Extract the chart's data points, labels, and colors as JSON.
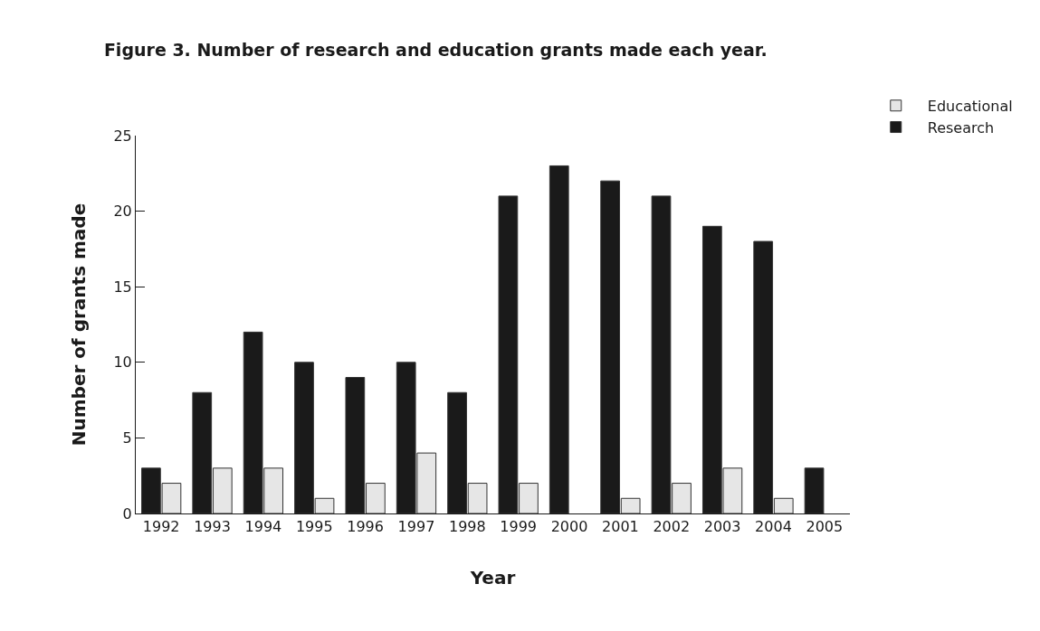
{
  "chart_data": {
    "type": "bar",
    "title": "Figure 3. Number of research and education grants made each year.",
    "xlabel": "Year",
    "ylabel": "Number of grants made",
    "categories": [
      "1992",
      "1993",
      "1994",
      "1995",
      "1996",
      "1997",
      "1998",
      "1999",
      "2000",
      "2001",
      "2002",
      "2003",
      "2004",
      "2005"
    ],
    "series": [
      {
        "name": "Research",
        "color": "#1a1a1a",
        "values": [
          3,
          8,
          12,
          10,
          9,
          10,
          8,
          21,
          23,
          22,
          21,
          19,
          18,
          3
        ]
      },
      {
        "name": "Educational",
        "color": "#e6e6e6",
        "values": [
          2,
          3,
          3,
          1,
          2,
          4,
          2,
          2,
          null,
          1,
          2,
          3,
          1,
          null
        ]
      }
    ],
    "ylim": [
      0,
      25
    ],
    "yticks": [
      0,
      5,
      10,
      15,
      20,
      25
    ],
    "grid": false,
    "legend": "top right"
  }
}
